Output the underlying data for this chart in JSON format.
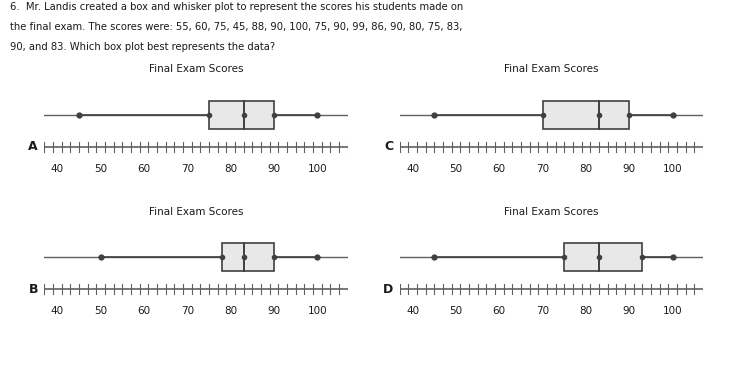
{
  "text_block": [
    "6.  Mr. Landis created a box and whisker plot to represent the scores his students made on",
    "the final exam. The scores were: 55, 60, 75, 45, 88, 90, 100, 75, 90, 99, 86, 90, 80, 75, 83,",
    "90, and 83. Which box plot best represents the data?"
  ],
  "plots": [
    {
      "label": "A",
      "title": "Final Exam Scores",
      "min": 45,
      "q1": 75,
      "median": 83,
      "q3": 90,
      "max": 100,
      "xmin": 37,
      "xmax": 107,
      "xticks": [
        40,
        50,
        60,
        70,
        80,
        90,
        100
      ]
    },
    {
      "label": "C",
      "title": "Final Exam Scores",
      "min": 45,
      "q1": 70,
      "median": 83,
      "q3": 90,
      "max": 100,
      "xmin": 37,
      "xmax": 107,
      "xticks": [
        40,
        50,
        60,
        70,
        80,
        90,
        100
      ]
    },
    {
      "label": "B",
      "title": "Final Exam Scores",
      "min": 50,
      "q1": 78,
      "median": 83,
      "q3": 90,
      "max": 100,
      "xmin": 37,
      "xmax": 107,
      "xticks": [
        40,
        50,
        60,
        70,
        80,
        90,
        100
      ]
    },
    {
      "label": "D",
      "title": "Final Exam Scores",
      "min": 45,
      "q1": 75,
      "median": 83,
      "q3": 93,
      "max": 100,
      "xmin": 37,
      "xmax": 107,
      "xticks": [
        40,
        50,
        60,
        70,
        80,
        90,
        100
      ]
    }
  ],
  "box_color": "#e8e8e8",
  "line_color": "#404040",
  "axis_color": "#606060",
  "text_color": "#1a1a1a",
  "background_color": "#ffffff",
  "title_fontsize": 7.5,
  "label_fontsize": 9,
  "tick_fontsize": 7.5
}
